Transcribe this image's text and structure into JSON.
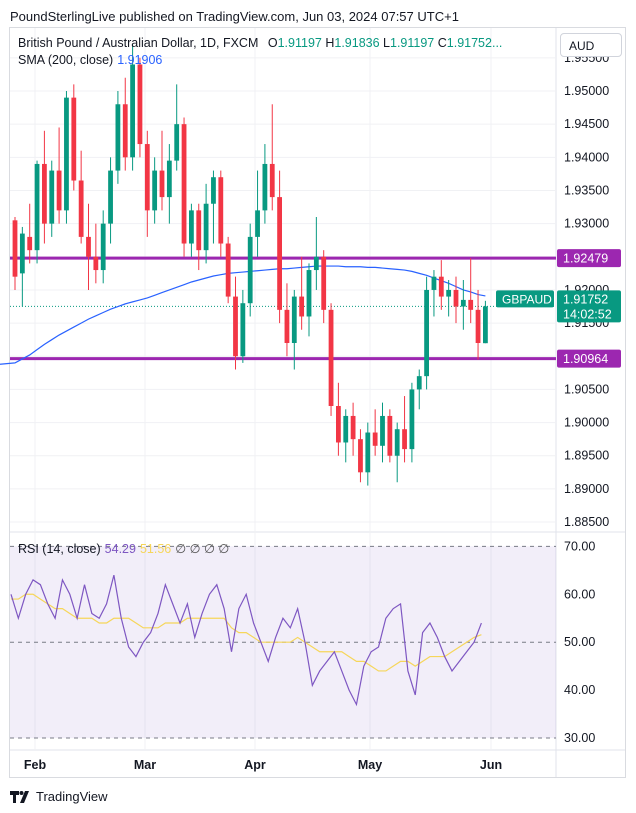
{
  "header": {
    "text": "PoundSterlingLive published on TradingView.com, Jun 03, 2024 07:57 UTC+1"
  },
  "legend": {
    "symbol": "British Pound / Australian Dollar, 1D, FXCM",
    "o_label": "O",
    "o": "1.91197",
    "h_label": "H",
    "h": "1.91836",
    "l_label": "L",
    "l": "1.91197",
    "c_label": "C",
    "c": "1.91752",
    "ellipsis": "...",
    "sma_label": "SMA (200, close)",
    "sma_value": "1.91906"
  },
  "currency_button": "AUD",
  "rsi_legend": {
    "label": "RSI (14, close)",
    "rsi": "54.29",
    "ma": "51.56",
    "rest": "∅ ∅ ∅ ∅"
  },
  "footer": {
    "brand": "TradingView"
  },
  "colors": {
    "up": "#089981",
    "down": "#f23645",
    "sma": "#2962ff",
    "level": "#9c27b0",
    "rsi": "#7e57c2",
    "rsi_ma": "#f6d65a"
  },
  "chart_data": [
    {
      "type": "candlestick",
      "title": "British Pound / Australian Dollar, 1D, FXCM",
      "ylim": [
        1.8835,
        1.9595
      ],
      "yticks": [
        1.885,
        1.89,
        1.895,
        1.9,
        1.905,
        1.91,
        1.915,
        1.92,
        1.925,
        1.93,
        1.935,
        1.94,
        1.945,
        1.95,
        1.955
      ],
      "ytick_labels": [
        "1.88500",
        "1.89000",
        "1.89500",
        "1.90000",
        "1.90500",
        "1.91000",
        "1.91500",
        "1.92000",
        "1.92500",
        "1.93000",
        "1.93500",
        "1.94000",
        "1.94500",
        "1.95000",
        "1.95500"
      ],
      "xtick_labels": [
        "Feb",
        "Mar",
        "Apr",
        "May",
        "Jun"
      ],
      "horizontal_levels": [
        {
          "value": 1.92479,
          "label": "1.92479"
        },
        {
          "value": 1.90964,
          "label": "1.90964"
        }
      ],
      "price_tag": {
        "symbol": "GBPAUD",
        "value": "1.91752",
        "countdown": "14:02:52",
        "level": 1.91752
      },
      "candles": [
        {
          "o": 1.9305,
          "h": 1.931,
          "l": 1.92,
          "c": 1.922
        },
        {
          "o": 1.9225,
          "h": 1.9295,
          "l": 1.9175,
          "c": 1.9285
        },
        {
          "o": 1.928,
          "h": 1.933,
          "l": 1.924,
          "c": 1.926
        },
        {
          "o": 1.926,
          "h": 1.9395,
          "l": 1.924,
          "c": 1.939
        },
        {
          "o": 1.939,
          "h": 1.944,
          "l": 1.927,
          "c": 1.93
        },
        {
          "o": 1.93,
          "h": 1.9395,
          "l": 1.928,
          "c": 1.938
        },
        {
          "o": 1.938,
          "h": 1.9445,
          "l": 1.93,
          "c": 1.932
        },
        {
          "o": 1.932,
          "h": 1.95,
          "l": 1.93,
          "c": 1.949
        },
        {
          "o": 1.949,
          "h": 1.951,
          "l": 1.935,
          "c": 1.9365
        },
        {
          "o": 1.9365,
          "h": 1.941,
          "l": 1.927,
          "c": 1.928
        },
        {
          "o": 1.928,
          "h": 1.933,
          "l": 1.92,
          "c": 1.925
        },
        {
          "o": 1.925,
          "h": 1.93,
          "l": 1.921,
          "c": 1.923
        },
        {
          "o": 1.923,
          "h": 1.932,
          "l": 1.921,
          "c": 1.93
        },
        {
          "o": 1.93,
          "h": 1.94,
          "l": 1.927,
          "c": 1.938
        },
        {
          "o": 1.938,
          "h": 1.95,
          "l": 1.936,
          "c": 1.948
        },
        {
          "o": 1.948,
          "h": 1.952,
          "l": 1.938,
          "c": 1.94
        },
        {
          "o": 1.94,
          "h": 1.957,
          "l": 1.938,
          "c": 1.954
        },
        {
          "o": 1.954,
          "h": 1.955,
          "l": 1.94,
          "c": 1.942
        },
        {
          "o": 1.942,
          "h": 1.944,
          "l": 1.928,
          "c": 1.932
        },
        {
          "o": 1.932,
          "h": 1.94,
          "l": 1.93,
          "c": 1.938
        },
        {
          "o": 1.938,
          "h": 1.944,
          "l": 1.932,
          "c": 1.934
        },
        {
          "o": 1.934,
          "h": 1.942,
          "l": 1.93,
          "c": 1.9395
        },
        {
          "o": 1.9395,
          "h": 1.951,
          "l": 1.938,
          "c": 1.945
        },
        {
          "o": 1.945,
          "h": 1.946,
          "l": 1.925,
          "c": 1.927
        },
        {
          "o": 1.927,
          "h": 1.933,
          "l": 1.925,
          "c": 1.932
        },
        {
          "o": 1.932,
          "h": 1.933,
          "l": 1.923,
          "c": 1.926
        },
        {
          "o": 1.926,
          "h": 1.936,
          "l": 1.924,
          "c": 1.933
        },
        {
          "o": 1.933,
          "h": 1.938,
          "l": 1.927,
          "c": 1.937
        },
        {
          "o": 1.937,
          "h": 1.938,
          "l": 1.925,
          "c": 1.927
        },
        {
          "o": 1.927,
          "h": 1.928,
          "l": 1.918,
          "c": 1.919
        },
        {
          "o": 1.919,
          "h": 1.922,
          "l": 1.908,
          "c": 1.91
        },
        {
          "o": 1.91,
          "h": 1.92,
          "l": 1.909,
          "c": 1.918
        },
        {
          "o": 1.918,
          "h": 1.93,
          "l": 1.916,
          "c": 1.928
        },
        {
          "o": 1.928,
          "h": 1.938,
          "l": 1.925,
          "c": 1.932
        },
        {
          "o": 1.932,
          "h": 1.942,
          "l": 1.93,
          "c": 1.939
        },
        {
          "o": 1.939,
          "h": 1.948,
          "l": 1.932,
          "c": 1.934
        },
        {
          "o": 1.934,
          "h": 1.938,
          "l": 1.915,
          "c": 1.917
        },
        {
          "o": 1.917,
          "h": 1.921,
          "l": 1.91,
          "c": 1.912
        },
        {
          "o": 1.912,
          "h": 1.92,
          "l": 1.908,
          "c": 1.919
        },
        {
          "o": 1.919,
          "h": 1.925,
          "l": 1.914,
          "c": 1.916
        },
        {
          "o": 1.916,
          "h": 1.924,
          "l": 1.913,
          "c": 1.923
        },
        {
          "o": 1.923,
          "h": 1.931,
          "l": 1.92,
          "c": 1.925
        },
        {
          "o": 1.925,
          "h": 1.926,
          "l": 1.915,
          "c": 1.917
        },
        {
          "o": 1.917,
          "h": 1.918,
          "l": 1.901,
          "c": 1.9025
        },
        {
          "o": 1.9025,
          "h": 1.906,
          "l": 1.895,
          "c": 1.897
        },
        {
          "o": 1.897,
          "h": 1.902,
          "l": 1.894,
          "c": 1.901
        },
        {
          "o": 1.901,
          "h": 1.903,
          "l": 1.895,
          "c": 1.8975
        },
        {
          "o": 1.8975,
          "h": 1.899,
          "l": 1.891,
          "c": 1.8925
        },
        {
          "o": 1.8925,
          "h": 1.9,
          "l": 1.8905,
          "c": 1.8985
        },
        {
          "o": 1.8985,
          "h": 1.902,
          "l": 1.895,
          "c": 1.8965
        },
        {
          "o": 1.8965,
          "h": 1.903,
          "l": 1.894,
          "c": 1.901
        },
        {
          "o": 1.901,
          "h": 1.902,
          "l": 1.894,
          "c": 1.895
        },
        {
          "o": 1.895,
          "h": 1.9,
          "l": 1.891,
          "c": 1.899
        },
        {
          "o": 1.899,
          "h": 1.904,
          "l": 1.894,
          "c": 1.896
        },
        {
          "o": 1.896,
          "h": 1.906,
          "l": 1.894,
          "c": 1.905
        },
        {
          "o": 1.905,
          "h": 1.908,
          "l": 1.902,
          "c": 1.907
        },
        {
          "o": 1.907,
          "h": 1.922,
          "l": 1.905,
          "c": 1.92
        },
        {
          "o": 1.92,
          "h": 1.923,
          "l": 1.916,
          "c": 1.922
        },
        {
          "o": 1.922,
          "h": 1.9245,
          "l": 1.917,
          "c": 1.919
        },
        {
          "o": 1.919,
          "h": 1.9215,
          "l": 1.916,
          "c": 1.92
        },
        {
          "o": 1.92,
          "h": 1.922,
          "l": 1.915,
          "c": 1.9175
        },
        {
          "o": 1.9175,
          "h": 1.9215,
          "l": 1.914,
          "c": 1.9185
        },
        {
          "o": 1.9185,
          "h": 1.9248,
          "l": 1.915,
          "c": 1.917
        },
        {
          "o": 1.917,
          "h": 1.92,
          "l": 1.9095,
          "c": 1.912
        },
        {
          "o": 1.91197,
          "h": 1.91836,
          "l": 1.91197,
          "c": 1.91752
        }
      ],
      "sma200": [
        1.909,
        1.9096,
        1.9102,
        1.911,
        1.9118,
        1.9125,
        1.9132,
        1.9138,
        1.9144,
        1.915,
        1.9156,
        1.9161,
        1.9166,
        1.9171,
        1.9175,
        1.9179,
        1.9182,
        1.9185,
        1.9188,
        1.9192,
        1.9196,
        1.92,
        1.9204,
        1.9208,
        1.9212,
        1.9215,
        1.9218,
        1.9221,
        1.9223,
        1.9225,
        1.9226,
        1.9227,
        1.9228,
        1.9229,
        1.923,
        1.9231,
        1.9232,
        1.9232,
        1.9233,
        1.9234,
        1.9235,
        1.9236,
        1.9236,
        1.9236,
        1.9236,
        1.9235,
        1.9235,
        1.9235,
        1.9234,
        1.9234,
        1.9233,
        1.9232,
        1.9231,
        1.923,
        1.9228,
        1.9225,
        1.9222,
        1.9218,
        1.9214,
        1.921,
        1.9205,
        1.92,
        1.9197,
        1.9193,
        1.9191
      ]
    },
    {
      "type": "line",
      "title": "RSI (14, close)",
      "ylim": [
        27.5,
        73
      ],
      "yticks": [
        30,
        40,
        50,
        60,
        70
      ],
      "ytick_labels": [
        "30.00",
        "40.00",
        "50.00",
        "60.00",
        "70.00"
      ],
      "band": [
        30,
        70
      ],
      "series": [
        {
          "name": "RSI",
          "values": [
            60,
            55,
            60,
            63,
            62,
            58,
            55,
            63,
            60,
            55,
            62,
            56,
            55,
            58,
            64,
            55,
            49,
            47,
            50,
            52,
            56,
            62,
            58,
            54,
            58,
            51,
            56,
            60,
            62,
            57,
            48,
            57,
            60,
            54,
            50,
            46,
            51,
            55,
            53,
            57,
            50,
            41,
            44,
            46,
            48,
            44,
            40,
            37,
            45,
            48,
            49,
            55,
            57,
            58,
            44,
            39,
            52,
            54,
            51,
            47,
            44,
            46,
            48,
            50,
            54
          ]
        },
        {
          "name": "RSI MA",
          "values": [
            59,
            59,
            60,
            60,
            59,
            58,
            57,
            57,
            56,
            55,
            55,
            55,
            54,
            54,
            55,
            55,
            55,
            54,
            53,
            53,
            53,
            54,
            54,
            54,
            55,
            55,
            55,
            55,
            55,
            55,
            53,
            52,
            52,
            51,
            50,
            50,
            50,
            50,
            50,
            51,
            50,
            49,
            48,
            48,
            48,
            48,
            47,
            46,
            46,
            45,
            44,
            44,
            45,
            46,
            46,
            45,
            46,
            47,
            47,
            47,
            48,
            49,
            50,
            51,
            51.56
          ]
        }
      ]
    }
  ]
}
